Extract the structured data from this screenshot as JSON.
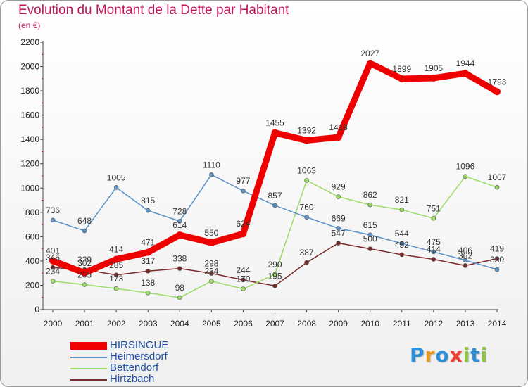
{
  "chart_data": {
    "type": "line",
    "title": "Evolution du Montant de la Dette par Habitant",
    "subtitle": "(en €)",
    "xlabel": "",
    "ylabel": "",
    "x": [
      "2000",
      "2001",
      "2002",
      "2003",
      "2004",
      "2005",
      "2006",
      "2007",
      "2008",
      "2009",
      "2010",
      "2011",
      "2012",
      "2013",
      "2014"
    ],
    "ylim": [
      0,
      2200
    ],
    "yticks": [
      0,
      200,
      400,
      600,
      800,
      1000,
      1200,
      1400,
      1600,
      1800,
      2000,
      2200
    ],
    "grid": false,
    "legend_position": "bottom-left",
    "series": [
      {
        "name": "HIRSINGUE",
        "color": "#ee0000",
        "emphasis": true,
        "values": [
          401,
          302,
          414,
          471,
          614,
          550,
          624,
          1455,
          1392,
          1418,
          2027,
          1899,
          1905,
          1944,
          1793
        ]
      },
      {
        "name": "Heimersdorf",
        "color": "#5a91c6",
        "emphasis": false,
        "values": [
          736,
          648,
          1005,
          815,
          728,
          1110,
          977,
          857,
          760,
          669,
          615,
          544,
          475,
          406,
          330
        ]
      },
      {
        "name": "Bettendorf",
        "color": "#99dd66",
        "emphasis": false,
        "values": [
          234,
          205,
          173,
          138,
          98,
          234,
          170,
          290,
          1063,
          929,
          862,
          821,
          751,
          1096,
          1007
        ]
      },
      {
        "name": "Hirtzbach",
        "color": "#7a2a2a",
        "emphasis": false,
        "values": [
          346,
          329,
          285,
          317,
          338,
          298,
          244,
          195,
          387,
          547,
          500,
          452,
          414,
          362,
          419
        ]
      }
    ]
  },
  "logo": {
    "letters": [
      "P",
      "r",
      "o",
      "x",
      "i",
      "t",
      "i"
    ],
    "colors": [
      "#2a8fd8",
      "#e89a1c",
      "#2a8fd8",
      "#ee3d2d",
      "#8cc63f",
      "#2a8fd8",
      "#8cc63f"
    ]
  }
}
